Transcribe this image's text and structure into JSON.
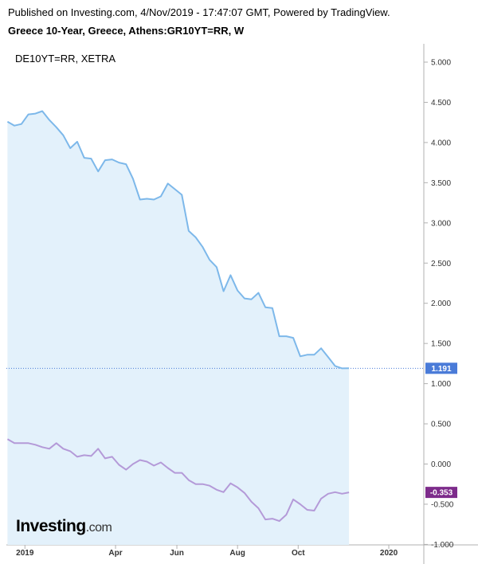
{
  "header": {
    "published": "Published on Investing.com, 4/Nov/2019 - 17:47:07 GMT, Powered by TradingView.",
    "symbol": "Greece 10-Year, Greece, Athens:GR10YT=RR, W",
    "compare_label": "DE10YT=RR, XETRA"
  },
  "logo": {
    "main": "Investing",
    "suffix": ".com"
  },
  "chart_data": {
    "type": "line",
    "title": "Greece 10-Year, Greece, Athens:GR10YT=RR, W",
    "ylim": [
      -1.0,
      5.0
    ],
    "y_ticks": [
      "5.000",
      "4.500",
      "4.000",
      "3.500",
      "3.000",
      "2.500",
      "2.000",
      "1.500",
      "1.000",
      "0.500",
      "0.000",
      "-0.500",
      "-1.000"
    ],
    "x_ticks": [
      {
        "label": "2019",
        "week": 2.5
      },
      {
        "label": "Apr",
        "week": 15.5
      },
      {
        "label": "Jun",
        "week": 24.3
      },
      {
        "label": "Aug",
        "week": 33
      },
      {
        "label": "Oct",
        "week": 41.7
      },
      {
        "label": "2020",
        "week": 54.7
      }
    ],
    "series": [
      {
        "name": "Greece 10-Year",
        "color": "#7db8ea",
        "fill": "#e3f1fb",
        "last_value_label": "1.191",
        "badge_color": "#4a7bd8",
        "values": [
          4.26,
          4.21,
          4.23,
          4.35,
          4.36,
          4.39,
          4.28,
          4.19,
          4.09,
          3.93,
          4.01,
          3.81,
          3.8,
          3.64,
          3.78,
          3.79,
          3.75,
          3.73,
          3.55,
          3.29,
          3.3,
          3.29,
          3.33,
          3.49,
          3.42,
          3.35,
          2.9,
          2.82,
          2.7,
          2.54,
          2.45,
          2.15,
          2.35,
          2.16,
          2.06,
          2.05,
          2.13,
          1.95,
          1.94,
          1.59,
          1.59,
          1.57,
          1.34,
          1.36,
          1.36,
          1.44,
          1.33,
          1.22,
          1.19,
          1.191
        ]
      },
      {
        "name": "DE10YT=RR, XETRA",
        "color": "#b49ad8",
        "last_value_label": "-0.353",
        "badge_color": "#7d2b8b",
        "values": [
          0.31,
          0.26,
          0.26,
          0.26,
          0.24,
          0.21,
          0.19,
          0.26,
          0.19,
          0.16,
          0.09,
          0.11,
          0.1,
          0.19,
          0.07,
          0.09,
          -0.01,
          -0.07,
          0.0,
          0.05,
          0.03,
          -0.02,
          0.02,
          -0.05,
          -0.11,
          -0.11,
          -0.2,
          -0.25,
          -0.25,
          -0.27,
          -0.32,
          -0.35,
          -0.24,
          -0.29,
          -0.36,
          -0.47,
          -0.55,
          -0.69,
          -0.68,
          -0.71,
          -0.63,
          -0.44,
          -0.5,
          -0.57,
          -0.58,
          -0.43,
          -0.37,
          -0.35,
          -0.37,
          -0.353
        ]
      }
    ],
    "grid": false,
    "legend": "top-left"
  }
}
